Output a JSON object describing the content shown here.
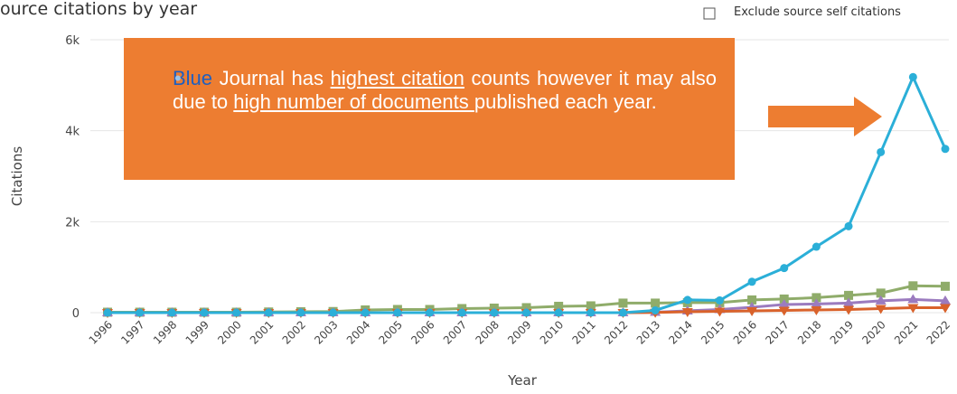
{
  "chart_data": {
    "type": "line",
    "title": "ource citations by year",
    "checkbox_label": "Exclude source self citations",
    "xlabel": "Year",
    "ylabel": "Citations",
    "categories": [
      "1996",
      "1997",
      "1998",
      "1999",
      "2000",
      "2001",
      "2002",
      "2003",
      "2004",
      "2005",
      "2006",
      "2007",
      "2008",
      "2009",
      "2010",
      "2011",
      "2012",
      "2013",
      "2014",
      "2015",
      "2016",
      "2017",
      "2018",
      "2019",
      "2020",
      "2021",
      "2022"
    ],
    "ylim": [
      0,
      6000
    ],
    "yticks": [
      0,
      {
        "value": 2000,
        "label": "2k"
      },
      {
        "value": 4000,
        "label": "4k"
      },
      {
        "value": 6000,
        "label": "6k"
      }
    ],
    "grid": true,
    "series": [
      {
        "color": "#8fac6a",
        "marker": "square",
        "values": [
          10,
          10,
          10,
          10,
          10,
          15,
          20,
          25,
          60,
          70,
          70,
          90,
          100,
          110,
          140,
          150,
          210,
          210,
          220,
          220,
          280,
          300,
          330,
          380,
          430,
          590,
          580
        ]
      },
      {
        "color": "#9b7bbf",
        "marker": "triangle",
        "values": [
          0,
          0,
          0,
          0,
          0,
          0,
          0,
          0,
          0,
          0,
          0,
          0,
          0,
          0,
          0,
          0,
          0,
          10,
          40,
          70,
          120,
          180,
          190,
          210,
          260,
          290,
          260
        ]
      },
      {
        "color": "#d9622b",
        "marker": "triangle-down",
        "values": [
          0,
          0,
          0,
          0,
          0,
          0,
          0,
          0,
          0,
          0,
          0,
          0,
          0,
          0,
          0,
          0,
          0,
          5,
          20,
          30,
          40,
          50,
          60,
          70,
          90,
          110,
          110
        ]
      },
      {
        "color": "#2bafd8",
        "marker": "circle",
        "values": [
          0,
          0,
          0,
          0,
          0,
          0,
          0,
          0,
          0,
          0,
          0,
          0,
          0,
          0,
          0,
          0,
          0,
          50,
          280,
          270,
          680,
          980,
          1450,
          1900,
          3530,
          5180,
          3600
        ]
      }
    ]
  },
  "annotation": [
    "Blue",
    " Journal has ",
    "highest citation",
    " counts however it may also due to ",
    "high number of documents ",
    "published each year."
  ]
}
